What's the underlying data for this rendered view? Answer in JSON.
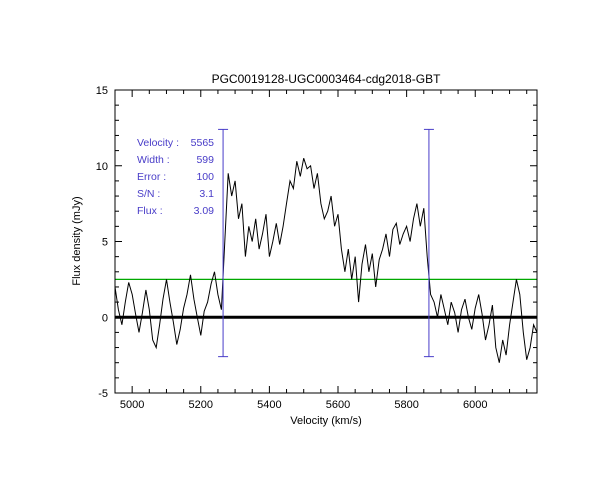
{
  "figure": {
    "background": "#ffffff"
  },
  "chart_data": {
    "type": "line",
    "title": "PGC0019128-UGC0003464-cdg2018-GBT",
    "xlabel": "Velocity (km/s)",
    "ylabel": "Flux density (mJy)",
    "xlim": [
      4950,
      6180
    ],
    "ylim": [
      -5,
      15
    ],
    "x_major_ticks": [
      5000,
      5200,
      5400,
      5600,
      5800,
      6000
    ],
    "x_minor_step": 50,
    "y_major_ticks": [
      -5,
      0,
      5,
      10,
      15
    ],
    "y_minor_step": 1,
    "grid": false,
    "frame_color": "#000000",
    "series": [
      {
        "name": "hi-spectrum",
        "color": "#000000",
        "x_start": 4950,
        "x_step": 10,
        "values": [
          2.0,
          0.5,
          -0.5,
          1.0,
          2.3,
          1.5,
          0.2,
          -1.0,
          0.3,
          1.8,
          0.5,
          -1.5,
          -2.0,
          -0.5,
          1.2,
          2.5,
          1.0,
          -0.3,
          -1.8,
          -0.8,
          0.6,
          1.5,
          2.8,
          1.2,
          0.0,
          -1.2,
          0.4,
          1.0,
          2.2,
          3.0,
          1.5,
          0.5,
          5.0,
          9.5,
          8.0,
          9.0,
          6.5,
          7.5,
          4.0,
          6.0,
          5.0,
          6.5,
          4.5,
          5.5,
          6.8,
          4.0,
          5.0,
          6.2,
          4.8,
          6.0,
          7.5,
          9.0,
          8.5,
          10.3,
          9.3,
          10.5,
          9.8,
          10.0,
          8.5,
          9.5,
          7.5,
          6.5,
          7.0,
          8.0,
          6.0,
          6.8,
          4.5,
          3.0,
          4.5,
          2.5,
          4.0,
          1.0,
          3.5,
          4.8,
          3.0,
          4.2,
          2.0,
          3.8,
          4.5,
          5.5,
          4.0,
          5.8,
          6.2,
          4.8,
          5.5,
          6.0,
          5.0,
          6.5,
          7.5,
          6.0,
          7.2,
          4.0,
          1.5,
          1.0,
          0.0,
          1.5,
          0.5,
          -0.5,
          1.0,
          0.3,
          -1.0,
          0.5,
          1.2,
          0.0,
          -0.8,
          0.6,
          1.5,
          0.2,
          -1.5,
          -0.5,
          0.8,
          -2.0,
          -3.0,
          -1.5,
          -2.5,
          -0.5,
          1.0,
          2.5,
          1.5,
          -1.0,
          -2.8,
          -2.0,
          -0.5,
          -1.0
        ]
      }
    ],
    "reference_lines": [
      {
        "name": "zero-baseline",
        "y": 0,
        "color": "#000000",
        "stroke_width": 3
      },
      {
        "name": "flux-threshold",
        "y": 2.5,
        "color": "#00a800",
        "stroke_width": 1.2
      }
    ],
    "velocity_markers": {
      "color": "#483cc8",
      "y_min": -2.6,
      "y_max": 12.4,
      "positions": [
        5265,
        5865
      ]
    },
    "annotations": {
      "color": "#483cc8",
      "items": [
        {
          "label": "Velocity :",
          "value": "5565"
        },
        {
          "label": "Width :",
          "value": "599"
        },
        {
          "label": "Error :",
          "value": "100"
        },
        {
          "label": "S/N :",
          "value": "3.1"
        },
        {
          "label": "Flux :",
          "value": "3.09"
        }
      ]
    }
  }
}
